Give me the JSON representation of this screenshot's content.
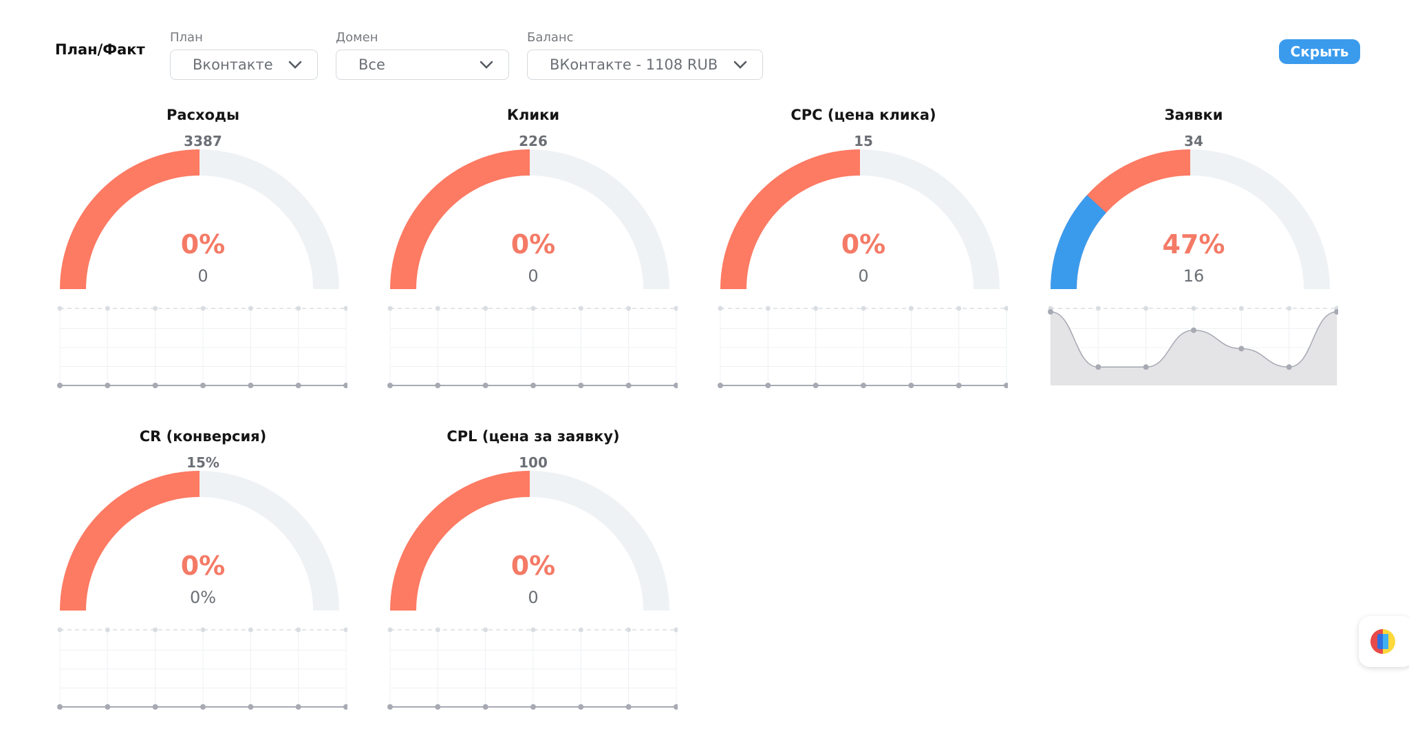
{
  "header": {
    "title": "План/Факт",
    "hide_button": "Скрыть"
  },
  "filters": [
    {
      "label": "План",
      "value": "Вконтакте"
    },
    {
      "label": "Домен",
      "value": "Все"
    },
    {
      "label": "Баланс",
      "value": "ВКонтакте - 1108 RUB"
    }
  ],
  "colors": {
    "plan_fill": "#fd7a63",
    "fact_fill": "#3a9bed",
    "track": "#eff2f5",
    "accent_text": "#f47a66",
    "button": "#3a9bed"
  },
  "widgets": [
    {
      "title": "Расходы",
      "target": "3387",
      "percent_label": "0%",
      "fact_label": "0",
      "fact_fraction": 0,
      "spark": [
        0,
        0,
        0,
        0,
        0,
        0,
        0
      ],
      "spark_max": 0
    },
    {
      "title": "Клики",
      "target": "226",
      "percent_label": "0%",
      "fact_label": "0",
      "fact_fraction": 0,
      "spark": [
        0,
        0,
        0,
        0,
        0,
        0,
        0
      ],
      "spark_max": 0
    },
    {
      "title": "CPC (цена клика)",
      "target": "15",
      "percent_label": "0%",
      "fact_label": "0",
      "fact_fraction": 0,
      "spark": [
        0,
        0,
        0,
        0,
        0,
        0,
        0
      ],
      "spark_max": 0
    },
    {
      "title": "Заявки",
      "target": "34",
      "percent_label": "47%",
      "fact_label": "16",
      "fact_fraction": 0.235,
      "spark": [
        4,
        1,
        1,
        3,
        2,
        1,
        4
      ],
      "spark_max": 4
    },
    {
      "title": "CR (конверсия)",
      "target": "15%",
      "percent_label": "0%",
      "fact_label": "0%",
      "fact_fraction": 0,
      "spark": [
        0,
        0,
        0,
        0,
        0,
        0,
        0
      ],
      "spark_max": 0
    },
    {
      "title": "CPL (цена за заявку)",
      "target": "100",
      "percent_label": "0%",
      "fact_label": "0",
      "fact_fraction": 0,
      "spark": [
        0,
        0,
        0,
        0,
        0,
        0,
        0
      ],
      "spark_max": 0
    }
  ],
  "icons": {
    "filter_chevron": "chevron-down-icon",
    "assistant": "app-logo-icon"
  }
}
